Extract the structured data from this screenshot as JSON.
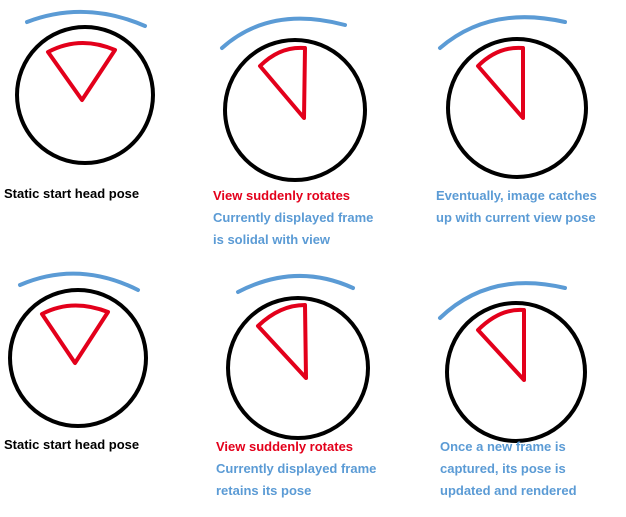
{
  "colors": {
    "view": "#5b9bd5",
    "frame": "#e3001b",
    "circle": "#000000",
    "caption_dark": "#000000",
    "caption_red": "#e3001b",
    "caption_blue": "#5b9bd5"
  },
  "panels": [
    {
      "caption": [
        "Static start head pose"
      ],
      "caption_colors": [
        "dark"
      ]
    },
    {
      "caption": [
        "View suddenly rotates",
        "Currently displayed frame",
        "is solidal with view"
      ],
      "caption_colors": [
        "red",
        "blue",
        "blue"
      ]
    },
    {
      "caption": [
        "Eventually, image catches",
        "up with current view pose"
      ],
      "caption_colors": [
        "blue",
        "blue"
      ]
    },
    {
      "caption": [
        "Static start head pose"
      ],
      "caption_colors": [
        "dark"
      ]
    },
    {
      "caption": [
        "View suddenly rotates",
        "Currently displayed frame",
        "retains its pose"
      ],
      "caption_colors": [
        "red",
        "blue",
        "blue"
      ]
    },
    {
      "caption": [
        "Once a new frame is",
        "captured, its pose is",
        "updated and rendered"
      ],
      "caption_colors": [
        "blue",
        "blue",
        "blue"
      ]
    }
  ]
}
